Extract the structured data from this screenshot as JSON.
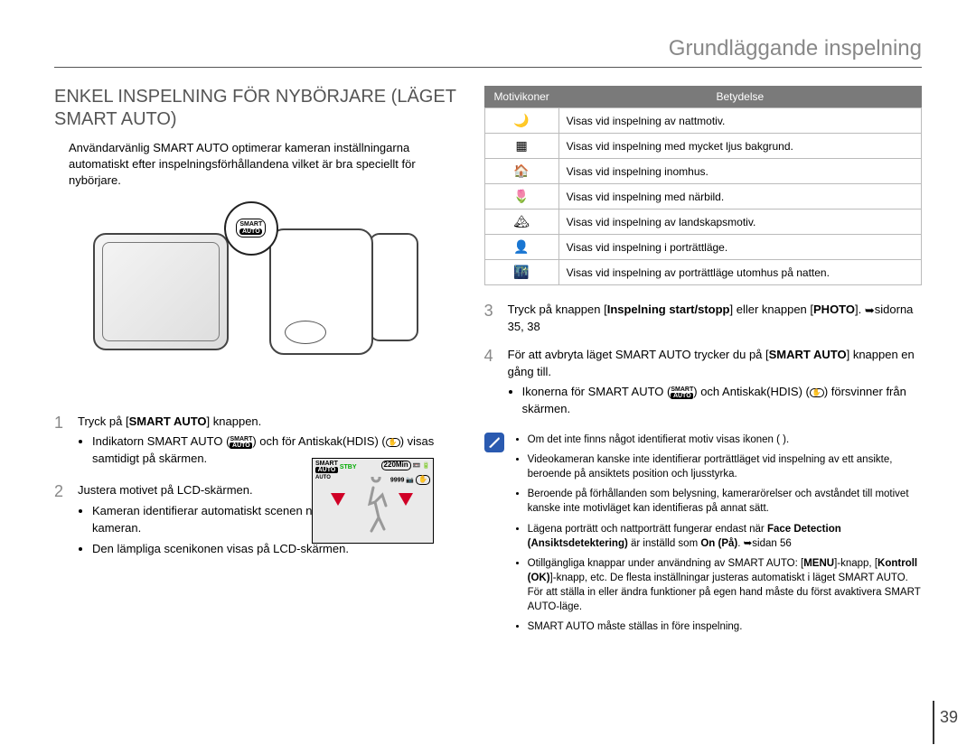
{
  "header": {
    "section_title": "Grundläggande inspelning"
  },
  "heading": "ENKEL INSPELNING FÖR NYBÖRJARE (LÄGET SMART AUTO)",
  "intro": "Användarvänlig SMART AUTO optimerar kameran inställningarna automatiskt efter inspelningsförhållandena vilket är bra speciellt för nybörjare.",
  "smart_auto_badge": {
    "top": "SMART",
    "bottom": "AUTO"
  },
  "lcd": {
    "stby": "STBY",
    "time": "220Min",
    "count": "9999",
    "arrow_color": "#d00026"
  },
  "steps_left": {
    "1": {
      "text_prefix": "Tryck på [",
      "bold": "SMART AUTO",
      "text_suffix": "] knappen.",
      "bullet1": "Indikatorn SMART AUTO ( ) och för Antiskak(HDIS) ( ) visas samtidigt på skärmen."
    },
    "2": {
      "text": "Justera motivet på LCD-skärmen.",
      "b1": "Kameran identifierar automatiskt scenen när fokus justeras med kameran.",
      "b2": "Den lämpliga scenikonen visas på LCD-skärmen."
    }
  },
  "icon_table": {
    "header_left": "Motivikoner",
    "header_right": "Betydelse",
    "rows": [
      {
        "icon": "🌙",
        "text": "Visas vid inspelning av nattmotiv."
      },
      {
        "icon": "▦",
        "text": "Visas vid inspelning med mycket ljus bakgrund."
      },
      {
        "icon": "🏠",
        "text": "Visas vid inspelning inomhus."
      },
      {
        "icon": "🌷",
        "text": "Visas vid inspelning med närbild."
      },
      {
        "icon": "🏔",
        "text": "Visas vid inspelning av landskapsmotiv."
      },
      {
        "icon": "👤",
        "text": "Visas vid inspelning i porträttläge."
      },
      {
        "icon": "🌃",
        "text": "Visas vid inspelning av porträttläge utomhus på natten."
      }
    ]
  },
  "steps_right": {
    "3": {
      "pre": "Tryck på knappen [",
      "b1": "Inspelning start/stopp",
      "mid": "] eller knappen [",
      "b2": "PHOTO",
      "post": "]. ",
      "ref": "sidorna 35, 38"
    },
    "4": {
      "pre": "För att avbryta läget SMART AUTO trycker du på [",
      "b1": "SMART AUTO",
      "post": "] knappen en gång till.",
      "bullet": "Ikonerna för SMART AUTO ( ) och Antiskak(HDIS) ( ) försvinner från skärmen."
    }
  },
  "notes": [
    "Om det inte finns något identifierat motiv visas ikonen ( ).",
    "Videokameran kanske inte identifierar porträttläget vid inspelning av ett ansikte, beroende på ansiktets position och ljusstyrka.",
    "Beroende på förhållanden som belysning, kamerarörelser och avståndet till motivet kanske inte motivläget kan identifieras på annat sätt.",
    "Lägena porträtt och nattporträtt fungerar endast när <b>Face Detection (Ansiktsdetektering)</b> är inställd som <b>On (På)</b>. ➥sidan 56",
    "Otillgängliga knappar under användning av SMART AUTO: [<b>MENU</b>]-knapp, [<b>Kontroll (OK)</b>]-knapp, etc. De flesta inställningar justeras automatiskt i läget SMART AUTO. För att ställa in eller ändra funktioner på egen hand måste du först avaktivera SMART AUTO-läge.",
    "SMART AUTO måste ställas in före inspelning."
  ],
  "page_number": "39",
  "colors": {
    "header_text": "#888888",
    "table_header_bg": "#7a7a7a",
    "table_border": "#bbbbbb",
    "note_icon": "#2a5ab0",
    "arrow_red": "#d00026",
    "stby_green": "#00aa00"
  }
}
